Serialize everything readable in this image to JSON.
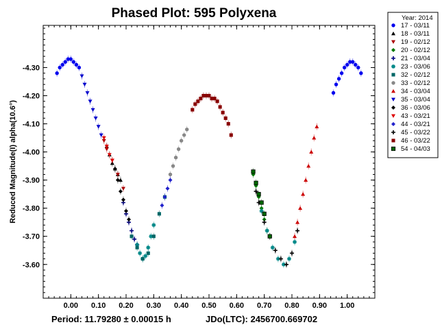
{
  "chart_data": {
    "type": "scatter",
    "title": "Phased Plot: 595 Polyxena",
    "xlabel": "",
    "ylabel": "Reduced Magnitude(I) alpha(10.6°)",
    "xlim": [
      -0.1,
      1.1
    ],
    "ylim": [
      -4.45,
      -3.48
    ],
    "y_inverted": true,
    "x_ticks": [
      "0.00",
      "0.10",
      "0.20",
      "0.30",
      "0.40",
      "0.50",
      "0.60",
      "0.70",
      "0.80",
      "0.90",
      "1.00"
    ],
    "y_ticks": [
      "-4.30",
      "-4.20",
      "-4.10",
      "-4.00",
      "-3.90",
      "-3.80",
      "-3.70",
      "-3.60"
    ],
    "footer_period": "Period: 11.79280 ± 0.00015 h",
    "footer_jd": "JDo(LTC): 2456700.669702",
    "legend_title": "Year: 2014",
    "legend_position": "top-right, outside plot",
    "grid": false,
    "series": [
      {
        "name": "17 - 03/11",
        "marker": "circle",
        "color": "#0000ee",
        "points": [
          [
            -0.05,
            -4.28
          ],
          [
            -0.04,
            -4.3
          ],
          [
            -0.03,
            -4.31
          ],
          [
            -0.02,
            -4.32
          ],
          [
            -0.01,
            -4.33
          ],
          [
            0.0,
            -4.33
          ],
          [
            0.01,
            -4.32
          ],
          [
            0.02,
            -4.31
          ],
          [
            0.03,
            -4.3
          ],
          [
            0.95,
            -4.21
          ],
          [
            0.96,
            -4.24
          ],
          [
            0.97,
            -4.26
          ],
          [
            0.98,
            -4.28
          ],
          [
            0.99,
            -4.3
          ],
          [
            1.0,
            -4.31
          ],
          [
            1.01,
            -4.32
          ],
          [
            1.02,
            -4.32
          ],
          [
            1.03,
            -4.31
          ],
          [
            1.04,
            -4.3
          ],
          [
            1.05,
            -4.28
          ]
        ]
      },
      {
        "name": "18 - 03/11",
        "marker": "triangle-up",
        "color": "#000000",
        "points": [
          [
            0.13,
            -4.02
          ],
          [
            0.14,
            -3.99
          ],
          [
            0.15,
            -3.96
          ],
          [
            0.16,
            -3.94
          ],
          [
            0.17,
            -3.92
          ],
          [
            0.18,
            -3.9
          ]
        ]
      },
      {
        "name": "19 - 02/12",
        "marker": "triangle-down",
        "color": "#aa0000",
        "points": [
          [
            0.12,
            -4.04
          ],
          [
            0.13,
            -4.01
          ],
          [
            0.15,
            -3.97
          ],
          [
            0.17,
            -3.92
          ],
          [
            0.19,
            -3.87
          ]
        ]
      },
      {
        "name": "20 - 02/12",
        "marker": "diamond",
        "color": "#007700",
        "points": [
          [
            0.66,
            -3.92
          ],
          [
            0.67,
            -3.88
          ],
          [
            0.68,
            -3.84
          ],
          [
            0.69,
            -3.8
          ],
          [
            0.7,
            -3.76
          ],
          [
            0.71,
            -3.72
          ]
        ]
      },
      {
        "name": "21 - 03/04",
        "marker": "plus",
        "color": "#000080",
        "points": [
          [
            0.19,
            -3.82
          ],
          [
            0.2,
            -3.78
          ],
          [
            0.21,
            -3.75
          ],
          [
            0.22,
            -3.72
          ],
          [
            0.23,
            -3.69
          ],
          [
            0.24,
            -3.67
          ]
        ]
      },
      {
        "name": "23 - 03/06",
        "marker": "asterisk",
        "color": "#008888",
        "points": [
          [
            0.24,
            -3.67
          ],
          [
            0.25,
            -3.64
          ],
          [
            0.26,
            -3.62
          ],
          [
            0.27,
            -3.63
          ],
          [
            0.28,
            -3.66
          ],
          [
            0.29,
            -3.7
          ],
          [
            0.3,
            -3.74
          ],
          [
            0.69,
            -3.79
          ],
          [
            0.71,
            -3.72
          ],
          [
            0.73,
            -3.66
          ],
          [
            0.75,
            -3.62
          ],
          [
            0.77,
            -3.6
          ],
          [
            0.79,
            -3.62
          ],
          [
            0.81,
            -3.68
          ]
        ]
      },
      {
        "name": "32 - 02/12",
        "marker": "square",
        "color": "#006666",
        "points": [
          [
            0.22,
            -3.7
          ],
          [
            0.24,
            -3.66
          ],
          [
            0.26,
            -3.62
          ],
          [
            0.28,
            -3.64
          ],
          [
            0.3,
            -3.7
          ],
          [
            0.32,
            -3.78
          ],
          [
            0.34,
            -3.84
          ]
        ]
      },
      {
        "name": "33 - 02/12",
        "marker": "circle",
        "color": "#888888",
        "points": [
          [
            0.36,
            -3.92
          ],
          [
            0.37,
            -3.95
          ],
          [
            0.38,
            -3.98
          ],
          [
            0.39,
            -4.01
          ],
          [
            0.4,
            -4.04
          ],
          [
            0.41,
            -4.06
          ],
          [
            0.42,
            -4.08
          ]
        ]
      },
      {
        "name": "34 - 03/04",
        "marker": "triangle-up",
        "color": "#cc0000",
        "points": [
          [
            0.81,
            -3.7
          ],
          [
            0.82,
            -3.75
          ],
          [
            0.83,
            -3.8
          ],
          [
            0.84,
            -3.85
          ],
          [
            0.85,
            -3.9
          ],
          [
            0.86,
            -3.95
          ],
          [
            0.87,
            -4.0
          ],
          [
            0.88,
            -4.05
          ],
          [
            0.89,
            -4.09
          ]
        ]
      },
      {
        "name": "35 - 03/04",
        "marker": "triangle-down",
        "color": "#0000cc",
        "points": [
          [
            0.04,
            -4.27
          ],
          [
            0.05,
            -4.24
          ],
          [
            0.06,
            -4.21
          ],
          [
            0.07,
            -4.18
          ],
          [
            0.08,
            -4.15
          ],
          [
            0.09,
            -4.12
          ],
          [
            0.1,
            -4.09
          ],
          [
            0.11,
            -4.06
          ]
        ]
      },
      {
        "name": "36 - 03/06",
        "marker": "diamond",
        "color": "#000000",
        "points": [
          [
            0.16,
            -3.94
          ],
          [
            0.17,
            -3.9
          ],
          [
            0.18,
            -3.86
          ],
          [
            0.19,
            -3.83
          ],
          [
            0.2,
            -3.79
          ],
          [
            0.21,
            -3.76
          ]
        ]
      },
      {
        "name": "43 - 03/21",
        "marker": "triangle-down",
        "color": "#dd0000",
        "points": [
          [
            0.12,
            -4.05
          ],
          [
            0.13,
            -4.02
          ],
          [
            0.14,
            -3.99
          ],
          [
            0.15,
            -3.97
          ]
        ]
      },
      {
        "name": "44 - 03/21",
        "marker": "diamond",
        "color": "#2222cc",
        "points": [
          [
            0.33,
            -3.81
          ],
          [
            0.34,
            -3.84
          ],
          [
            0.35,
            -3.87
          ],
          [
            0.36,
            -3.9
          ]
        ]
      },
      {
        "name": "45 - 03/22",
        "marker": "plus",
        "color": "#000000",
        "points": [
          [
            0.67,
            -3.86
          ],
          [
            0.68,
            -3.82
          ],
          [
            0.7,
            -3.75
          ],
          [
            0.72,
            -3.7
          ],
          [
            0.74,
            -3.65
          ],
          [
            0.76,
            -3.62
          ],
          [
            0.78,
            -3.6
          ],
          [
            0.8,
            -3.64
          ],
          [
            0.82,
            -3.72
          ]
        ]
      },
      {
        "name": "46 - 03/22",
        "marker": "square",
        "color": "#880000",
        "points": [
          [
            0.44,
            -4.15
          ],
          [
            0.45,
            -4.17
          ],
          [
            0.46,
            -4.18
          ],
          [
            0.47,
            -4.19
          ],
          [
            0.48,
            -4.2
          ],
          [
            0.49,
            -4.2
          ],
          [
            0.5,
            -4.2
          ],
          [
            0.51,
            -4.19
          ],
          [
            0.52,
            -4.19
          ],
          [
            0.53,
            -4.18
          ],
          [
            0.54,
            -4.16
          ],
          [
            0.55,
            -4.14
          ],
          [
            0.56,
            -4.12
          ],
          [
            0.57,
            -4.1
          ],
          [
            0.58,
            -4.06
          ]
        ]
      },
      {
        "name": "54 - 04/03",
        "marker": "square-dot",
        "color": "#006600",
        "points": [
          [
            0.66,
            -3.93
          ],
          [
            0.67,
            -3.89
          ],
          [
            0.68,
            -3.85
          ],
          [
            0.69,
            -3.82
          ],
          [
            0.7,
            -3.78
          ],
          [
            0.72,
            -3.7
          ]
        ]
      }
    ]
  }
}
